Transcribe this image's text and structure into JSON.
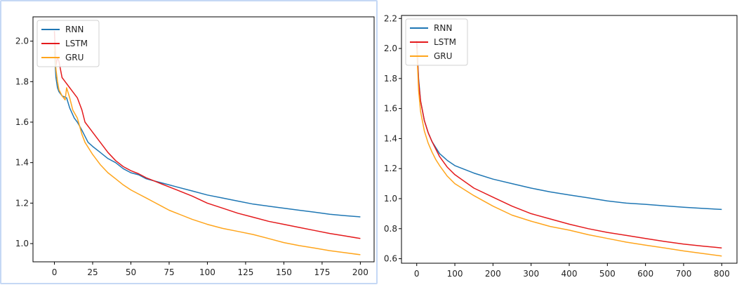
{
  "chart_data": [
    {
      "type": "line",
      "title": "",
      "xlabel": "",
      "ylabel": "",
      "xlim": [
        -14,
        209
      ],
      "ylim": [
        0.91,
        2.12
      ],
      "xticks": [
        0,
        25,
        50,
        75,
        100,
        125,
        150,
        175,
        200
      ],
      "yticks": [
        1.0,
        1.2,
        1.4,
        1.6,
        1.8,
        2.0
      ],
      "grid": false,
      "legend_position": "upper-left",
      "series": [
        {
          "name": "RNN",
          "color": "#1f77b4",
          "x": [
            0,
            1,
            2,
            3,
            5,
            8,
            10,
            13,
            15,
            18,
            20,
            22,
            25,
            30,
            35,
            40,
            45,
            50,
            55,
            60,
            65,
            70,
            75,
            80,
            90,
            100,
            110,
            120,
            130,
            140,
            150,
            160,
            170,
            180,
            190,
            200
          ],
          "y": [
            1.95,
            1.82,
            1.77,
            1.75,
            1.73,
            1.72,
            1.67,
            1.62,
            1.6,
            1.56,
            1.53,
            1.5,
            1.48,
            1.45,
            1.42,
            1.4,
            1.37,
            1.35,
            1.34,
            1.32,
            1.31,
            1.3,
            1.29,
            1.28,
            1.26,
            1.24,
            1.225,
            1.21,
            1.195,
            1.185,
            1.175,
            1.165,
            1.155,
            1.145,
            1.138,
            1.132
          ]
        },
        {
          "name": "LSTM",
          "color": "#e41a1c",
          "x": [
            0,
            1,
            2,
            3,
            4,
            5,
            7,
            10,
            13,
            15,
            18,
            20,
            25,
            30,
            35,
            40,
            45,
            50,
            55,
            60,
            65,
            70,
            75,
            80,
            90,
            100,
            110,
            120,
            130,
            140,
            150,
            160,
            170,
            180,
            190,
            200
          ],
          "y": [
            2.05,
            1.88,
            1.92,
            1.9,
            1.86,
            1.82,
            1.8,
            1.77,
            1.74,
            1.72,
            1.66,
            1.6,
            1.55,
            1.5,
            1.45,
            1.41,
            1.38,
            1.36,
            1.345,
            1.325,
            1.31,
            1.295,
            1.28,
            1.265,
            1.235,
            1.2,
            1.175,
            1.15,
            1.13,
            1.11,
            1.095,
            1.08,
            1.065,
            1.05,
            1.038,
            1.025
          ]
        },
        {
          "name": "GRU",
          "color": "#ffa51c",
          "x": [
            0,
            1,
            2,
            3,
            5,
            7,
            8,
            10,
            12,
            15,
            18,
            20,
            25,
            30,
            35,
            40,
            45,
            50,
            55,
            60,
            65,
            70,
            75,
            80,
            90,
            100,
            110,
            120,
            130,
            140,
            150,
            160,
            170,
            180,
            190,
            200
          ],
          "y": [
            1.98,
            1.86,
            1.8,
            1.76,
            1.73,
            1.71,
            1.77,
            1.72,
            1.66,
            1.62,
            1.54,
            1.5,
            1.44,
            1.39,
            1.35,
            1.32,
            1.29,
            1.265,
            1.245,
            1.225,
            1.205,
            1.185,
            1.165,
            1.15,
            1.12,
            1.095,
            1.075,
            1.06,
            1.045,
            1.025,
            1.005,
            0.99,
            0.978,
            0.965,
            0.955,
            0.945
          ]
        }
      ]
    },
    {
      "type": "line",
      "title": "",
      "xlabel": "",
      "ylabel": "",
      "xlim": [
        -40,
        840
      ],
      "ylim": [
        0.57,
        2.22
      ],
      "xticks": [
        0,
        100,
        200,
        300,
        400,
        500,
        600,
        700,
        800
      ],
      "yticks": [
        0.6,
        0.8,
        1.0,
        1.2,
        1.4,
        1.6,
        1.8,
        2.0,
        2.2
      ],
      "grid": false,
      "legend_position": "upper-left",
      "series": [
        {
          "name": "RNN",
          "color": "#1f77b4",
          "x": [
            0,
            5,
            10,
            20,
            30,
            40,
            50,
            60,
            80,
            100,
            150,
            200,
            250,
            300,
            350,
            400,
            450,
            500,
            550,
            600,
            650,
            700,
            750,
            800
          ],
          "y": [
            2.05,
            1.8,
            1.65,
            1.52,
            1.44,
            1.38,
            1.34,
            1.3,
            1.255,
            1.22,
            1.17,
            1.13,
            1.1,
            1.07,
            1.045,
            1.025,
            1.005,
            0.985,
            0.97,
            0.962,
            0.952,
            0.943,
            0.935,
            0.928
          ]
        },
        {
          "name": "LSTM",
          "color": "#e41a1c",
          "x": [
            0,
            5,
            10,
            20,
            30,
            40,
            50,
            60,
            80,
            100,
            150,
            200,
            250,
            300,
            350,
            400,
            450,
            500,
            550,
            600,
            650,
            700,
            750,
            800
          ],
          "y": [
            2.05,
            1.78,
            1.65,
            1.52,
            1.44,
            1.38,
            1.33,
            1.28,
            1.21,
            1.16,
            1.07,
            1.01,
            0.95,
            0.9,
            0.865,
            0.83,
            0.8,
            0.775,
            0.755,
            0.735,
            0.715,
            0.697,
            0.684,
            0.672
          ]
        },
        {
          "name": "GRU",
          "color": "#ffa51c",
          "x": [
            0,
            5,
            10,
            20,
            30,
            40,
            50,
            60,
            80,
            100,
            150,
            200,
            250,
            300,
            350,
            400,
            450,
            500,
            550,
            600,
            650,
            700,
            750,
            800
          ],
          "y": [
            2.0,
            1.72,
            1.58,
            1.45,
            1.37,
            1.31,
            1.26,
            1.22,
            1.15,
            1.1,
            1.02,
            0.95,
            0.89,
            0.85,
            0.815,
            0.79,
            0.76,
            0.735,
            0.71,
            0.69,
            0.672,
            0.652,
            0.635,
            0.618
          ]
        }
      ]
    }
  ]
}
